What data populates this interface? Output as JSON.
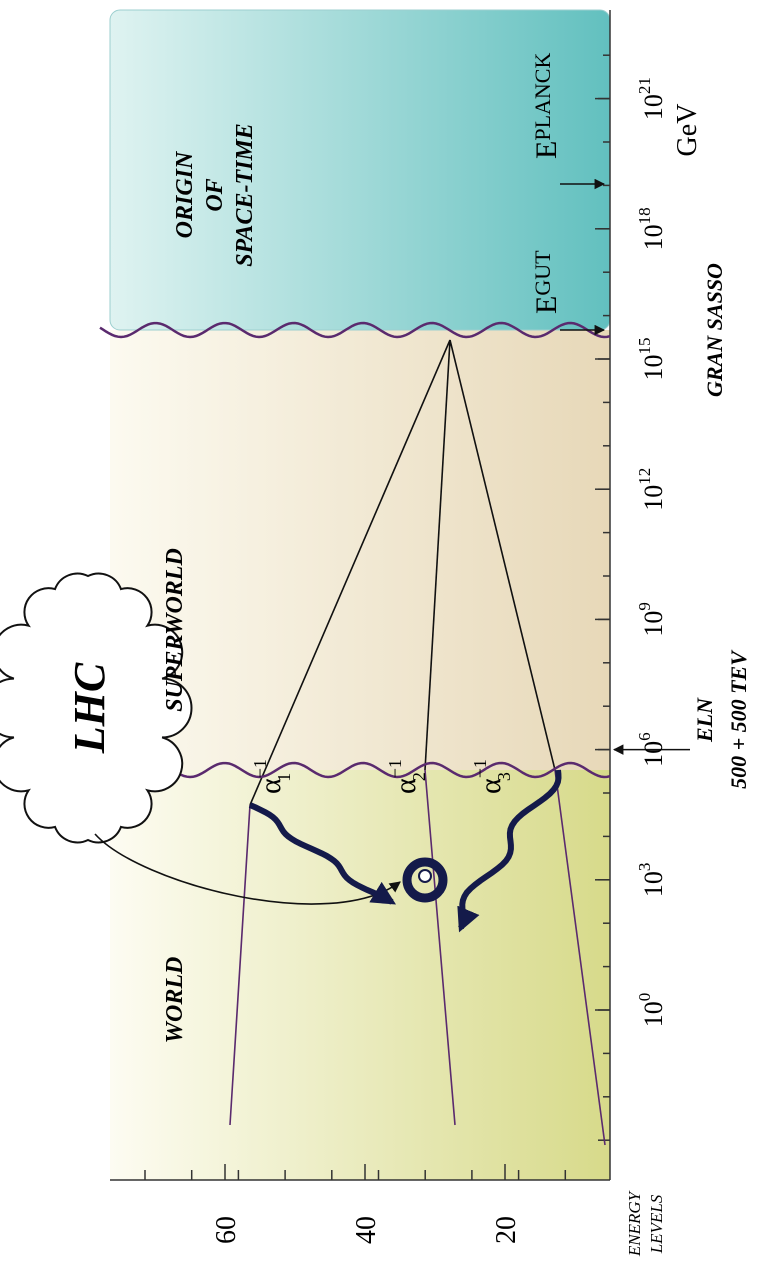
{
  "axes": {
    "y_ticks": [
      60,
      40,
      20
    ],
    "y_label_lines": [
      "ENERGY",
      "LEVELS"
    ],
    "x_ticks": [
      {
        "base": "10",
        "exponent": 0
      },
      {
        "base": "10",
        "exponent": 3
      },
      {
        "base": "10",
        "exponent": 6
      },
      {
        "base": "10",
        "exponent": 9
      },
      {
        "base": "10",
        "exponent": 12
      },
      {
        "base": "10",
        "exponent": 15
      },
      {
        "base": "10",
        "exponent": 18
      },
      {
        "base": "10",
        "exponent": 21
      }
    ],
    "x_unit": "GeV"
  },
  "regions": [
    {
      "label": "WORLD"
    },
    {
      "label": "SUPERWORLD"
    },
    {
      "label_lines": [
        "ORIGIN",
        "OF",
        "SPACE-TIME"
      ]
    }
  ],
  "couplings": [
    {
      "symbol": "α",
      "exponent": "−1",
      "index": "1"
    },
    {
      "symbol": "α",
      "exponent": "−1",
      "index": "2"
    },
    {
      "symbol": "α",
      "exponent": "−1",
      "index": "3"
    }
  ],
  "cloud": {
    "label": "LHC"
  },
  "annotations": {
    "gut": {
      "symbol": "E",
      "subscript": "GUT"
    },
    "planck": {
      "symbol": "E",
      "subscript": "PLANCK"
    },
    "gran_sasso": "GRAN SASSO",
    "eln": "ELN",
    "eln_energy": "500 + 500 TEV"
  }
}
